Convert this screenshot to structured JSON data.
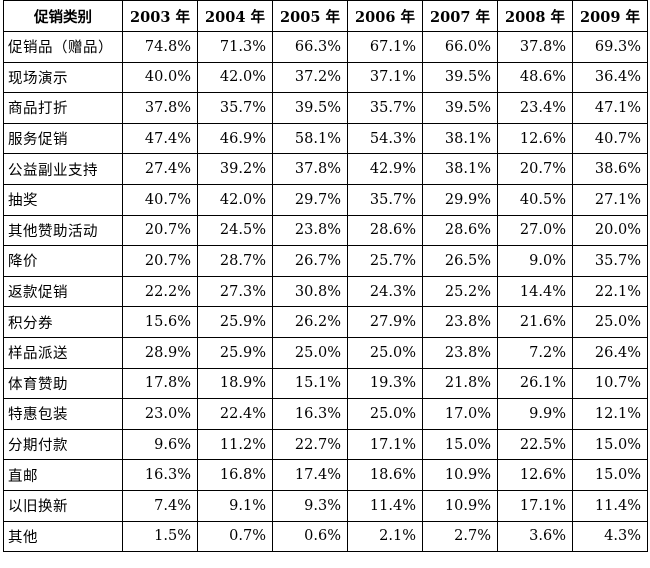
{
  "chart_data": {
    "type": "table",
    "header": {
      "category_label": "促销类别",
      "years": [
        "2003 年",
        "2004 年",
        "2005 年",
        "2006 年",
        "2007 年",
        "2008 年",
        "2009 年"
      ]
    },
    "rows": [
      {
        "category": "促销品（赠品）",
        "values": [
          "74.8%",
          "71.3%",
          "66.3%",
          "67.1%",
          "66.0%",
          "37.8%",
          "69.3%"
        ]
      },
      {
        "category": "现场演示",
        "values": [
          "40.0%",
          "42.0%",
          "37.2%",
          "37.1%",
          "39.5%",
          "48.6%",
          "36.4%"
        ]
      },
      {
        "category": "商品打折",
        "values": [
          "37.8%",
          "35.7%",
          "39.5%",
          "35.7%",
          "39.5%",
          "23.4%",
          "47.1%"
        ]
      },
      {
        "category": "服务促销",
        "values": [
          "47.4%",
          "46.9%",
          "58.1%",
          "54.3%",
          "38.1%",
          "12.6%",
          "40.7%"
        ]
      },
      {
        "category": "公益副业支持",
        "values": [
          "27.4%",
          "39.2%",
          "37.8%",
          "42.9%",
          "38.1%",
          "20.7%",
          "38.6%"
        ]
      },
      {
        "category": "抽奖",
        "values": [
          "40.7%",
          "42.0%",
          "29.7%",
          "35.7%",
          "29.9%",
          "40.5%",
          "27.1%"
        ]
      },
      {
        "category": "其他赞助活动",
        "values": [
          "20.7%",
          "24.5%",
          "23.8%",
          "28.6%",
          "28.6%",
          "27.0%",
          "20.0%"
        ]
      },
      {
        "category": "降价",
        "values": [
          "20.7%",
          "28.7%",
          "26.7%",
          "25.7%",
          "26.5%",
          "9.0%",
          "35.7%"
        ]
      },
      {
        "category": "返款促销",
        "values": [
          "22.2%",
          "27.3%",
          "30.8%",
          "24.3%",
          "25.2%",
          "14.4%",
          "22.1%"
        ]
      },
      {
        "category": "积分券",
        "values": [
          "15.6%",
          "25.9%",
          "26.2%",
          "27.9%",
          "23.8%",
          "21.6%",
          "25.0%"
        ]
      },
      {
        "category": "样品派送",
        "values": [
          "28.9%",
          "25.9%",
          "25.0%",
          "25.0%",
          "23.8%",
          "7.2%",
          "26.4%"
        ]
      },
      {
        "category": "体育赞助",
        "values": [
          "17.8%",
          "18.9%",
          "15.1%",
          "19.3%",
          "21.8%",
          "26.1%",
          "10.7%"
        ]
      },
      {
        "category": "特惠包装",
        "values": [
          "23.0%",
          "22.4%",
          "16.3%",
          "25.0%",
          "17.0%",
          "9.9%",
          "12.1%"
        ]
      },
      {
        "category": "分期付款",
        "values": [
          "9.6%",
          "11.2%",
          "22.7%",
          "17.1%",
          "15.0%",
          "22.5%",
          "15.0%"
        ]
      },
      {
        "category": "直邮",
        "values": [
          "16.3%",
          "16.8%",
          "17.4%",
          "18.6%",
          "10.9%",
          "12.6%",
          "15.0%"
        ]
      },
      {
        "category": "以旧换新",
        "values": [
          "7.4%",
          "9.1%",
          "9.3%",
          "11.4%",
          "10.9%",
          "17.1%",
          "11.4%"
        ]
      },
      {
        "category": "其他",
        "values": [
          "1.5%",
          "0.7%",
          "0.6%",
          "2.1%",
          "2.7%",
          "3.6%",
          "4.3%"
        ]
      }
    ]
  }
}
